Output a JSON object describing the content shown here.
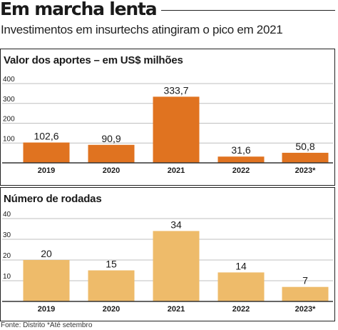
{
  "header": {
    "title": "Em marcha lenta",
    "subtitle": "Investimentos em insurtechs atingiram o pico em 2021"
  },
  "footer": {
    "note": "Fonte: Distrito   *Até setembro"
  },
  "colors": {
    "chart1_bar": "#e07320",
    "chart2_bar": "#eebb6a",
    "gridline": "#bfbfbf",
    "baseline": "#333333",
    "text": "#1a1a1a"
  },
  "chart_data": [
    {
      "type": "bar",
      "title": "Valor dos aportes – em US$ milhões",
      "categories": [
        "2019",
        "2020",
        "2021",
        "2022",
        "2023*"
      ],
      "values": [
        102.6,
        90.9,
        333.7,
        31.6,
        50.8
      ],
      "value_labels": [
        "102,6",
        "90,9",
        "333,7",
        "31,6",
        "50,8"
      ],
      "yticks": [
        100,
        200,
        300,
        400
      ],
      "ylim": [
        0,
        400
      ],
      "grid": true,
      "xlabel": "",
      "ylabel": ""
    },
    {
      "type": "bar",
      "title": "Número de rodadas",
      "categories": [
        "2019",
        "2020",
        "2021",
        "2022",
        "2023*"
      ],
      "values": [
        20,
        15,
        34,
        14,
        7
      ],
      "value_labels": [
        "20",
        "15",
        "34",
        "14",
        "7"
      ],
      "yticks": [
        10,
        20,
        30,
        40
      ],
      "ylim": [
        0,
        40
      ],
      "grid": true,
      "xlabel": "",
      "ylabel": ""
    }
  ]
}
